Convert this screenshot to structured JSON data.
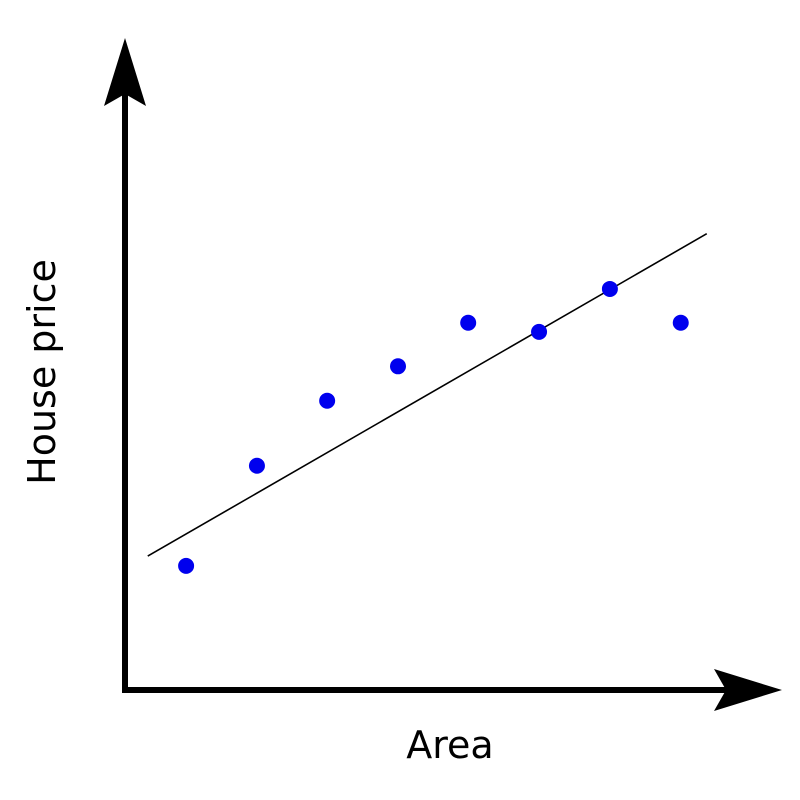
{
  "chart_data": {
    "type": "scatter",
    "xlabel": "Area",
    "ylabel": "House price",
    "x": [
      0.94,
      2.03,
      3.11,
      4.2,
      5.28,
      6.37,
      7.46,
      8.55
    ],
    "values": [
      1.91,
      3.45,
      4.45,
      4.98,
      5.65,
      5.51,
      6.17,
      5.65
    ],
    "color": "#0000ee",
    "fit": {
      "x": [
        0.35,
        8.95
      ],
      "values": [
        2.06,
        7.02
      ],
      "color": "#000000"
    },
    "xlim": [
      0,
      10
    ],
    "ylim": [
      0,
      10
    ]
  }
}
